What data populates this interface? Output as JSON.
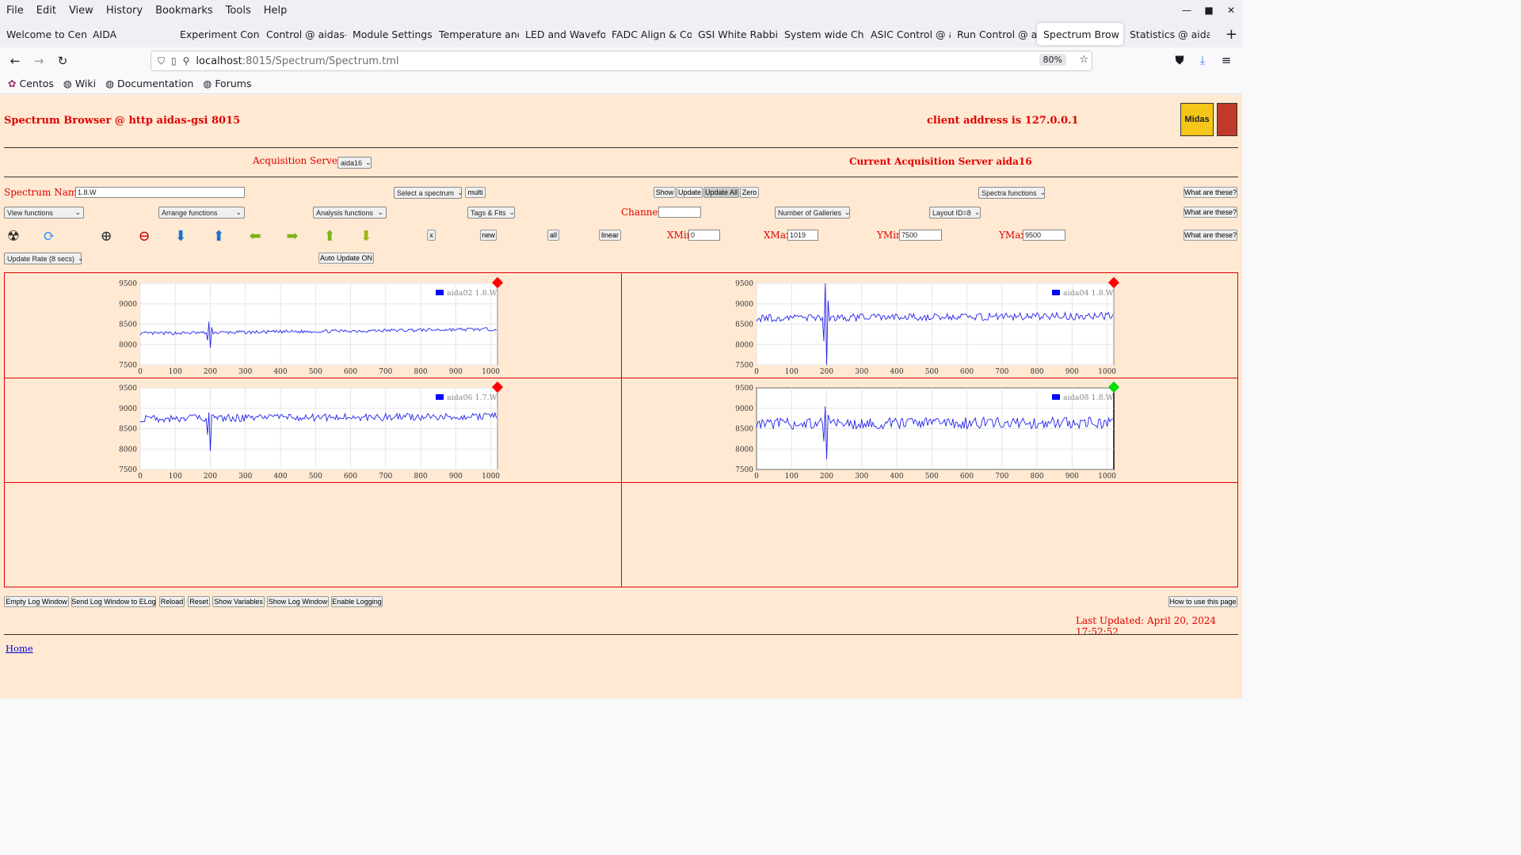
{
  "browser": {
    "menu": [
      "File",
      "Edit",
      "View",
      "History",
      "Bookmarks",
      "Tools",
      "Help"
    ],
    "tabs": [
      {
        "label": "Welcome to Cent",
        "active": false
      },
      {
        "label": "AIDA",
        "active": false
      },
      {
        "label": "Experiment Contr",
        "active": false
      },
      {
        "label": "Control @ aidas-",
        "active": false
      },
      {
        "label": "Module Settings",
        "active": false
      },
      {
        "label": "Temperature and",
        "active": false
      },
      {
        "label": "LED and Wavefor",
        "active": false
      },
      {
        "label": "FADC Align & Co",
        "active": false
      },
      {
        "label": "GSI White Rabbit",
        "active": false
      },
      {
        "label": "System wide Che",
        "active": false
      },
      {
        "label": "ASIC Control @ a",
        "active": false
      },
      {
        "label": "Run Control @ ai",
        "active": false
      },
      {
        "label": "Spectrum Brow",
        "active": true
      },
      {
        "label": "Statistics @ aidas",
        "active": false
      }
    ],
    "url_host": "localhost",
    "url_path": ":8015/Spectrum/Spectrum.tml",
    "zoom": "80%",
    "bookmarks": [
      "Centos",
      "Wiki",
      "Documentation",
      "Forums"
    ]
  },
  "header": {
    "title": "Spectrum Browser @ http aidas-gsi 8015",
    "client": "client address is 127.0.0.1"
  },
  "servers": {
    "label": "Acquisition Servers",
    "selected": "aida16",
    "current": "Current Acquisition Server aida16"
  },
  "controls": {
    "spectrum_name_label": "Spectrum Name:",
    "spectrum_name": "1.8.W",
    "select_spectrum": "Select a spectrum",
    "multi": "multi",
    "show": "Show",
    "update": "Update",
    "update_all": "Update All",
    "zero": "Zero",
    "spectra_functions": "Spectra functions",
    "what": "What are these?",
    "view_functions": "View functions",
    "arrange_functions": "Arrange functions",
    "analysis_functions": "Analysis functions",
    "tags_fits": "Tags & Fits",
    "channel_label": "Channel:",
    "channel": "",
    "galleries": "Number of Galleries",
    "layout": "Layout ID=8",
    "x": "x",
    "new": "new",
    "all": "all",
    "linear": "linear",
    "xmin_label": "XMin",
    "xmin": "0",
    "xmax_label": "XMax",
    "xmax": "1019",
    "ymin_label": "YMin",
    "ymin": "7500",
    "ymax_label": "YMax",
    "ymax": "9500",
    "update_rate": "Update Rate (8 secs)",
    "auto_update": "Auto Update ON"
  },
  "icons": [
    "radiation-icon",
    "refresh-icon",
    "zoom-in-icon",
    "zoom-out-icon",
    "arrow-down-blue-icon",
    "arrow-up-blue-icon",
    "arrow-left-icon",
    "arrow-right-icon",
    "arrow-up-icon",
    "arrow-down-icon"
  ],
  "chart_data": [
    {
      "type": "line",
      "legend": "aida02 1.8.W",
      "status_color": "#ff0000",
      "xlim": [
        0,
        1019
      ],
      "ylim": [
        7500,
        9500
      ],
      "xticks": [
        0,
        100,
        200,
        300,
        400,
        500,
        600,
        700,
        800,
        900,
        1000
      ],
      "yticks": [
        7500,
        8000,
        8500,
        9000,
        9500
      ],
      "baseline": 8300,
      "noise": 40,
      "spike": {
        "x": 200,
        "min": 7920,
        "max": 8560
      },
      "trend": [
        8270,
        8380
      ]
    },
    {
      "type": "line",
      "legend": "aida04 1.8.W",
      "status_color": "#ff0000",
      "xlim": [
        0,
        1019
      ],
      "ylim": [
        7500,
        9500
      ],
      "xticks": [
        0,
        100,
        200,
        300,
        400,
        500,
        600,
        700,
        800,
        900,
        1000
      ],
      "yticks": [
        7500,
        8000,
        8500,
        9000,
        9500
      ],
      "baseline": 8650,
      "noise": 90,
      "spike": {
        "x": 200,
        "min": 7500,
        "max": 9500
      },
      "trend": [
        8650,
        8700
      ]
    },
    {
      "type": "line",
      "legend": "aida06 1.7.W",
      "status_color": "#ff0000",
      "xlim": [
        0,
        1019
      ],
      "ylim": [
        7500,
        9500
      ],
      "xticks": [
        0,
        100,
        200,
        300,
        400,
        500,
        600,
        700,
        800,
        900,
        1000
      ],
      "yticks": [
        7500,
        8000,
        8500,
        9000,
        9500
      ],
      "baseline": 8750,
      "noise": 90,
      "spike": {
        "x": 200,
        "min": 7950,
        "max": 8900
      },
      "trend": [
        8750,
        8800
      ]
    },
    {
      "type": "line",
      "legend": "aida08 1.8.W",
      "status_color": "#00dd00",
      "xlim": [
        0,
        1019
      ],
      "ylim": [
        7500,
        9500
      ],
      "xticks": [
        0,
        100,
        200,
        300,
        400,
        500,
        600,
        700,
        800,
        900,
        1000
      ],
      "yticks": [
        7500,
        8000,
        8500,
        9000,
        9500
      ],
      "baseline": 8620,
      "noise": 140,
      "spike": {
        "x": 200,
        "min": 7750,
        "max": 9050
      },
      "trend": [
        8620,
        8650
      ]
    }
  ],
  "footer": {
    "buttons": [
      "Empty Log Window",
      "Send Log Window to ELog",
      "Reload",
      "Reset",
      "Show Variables",
      "Show Log Window",
      "Enable Logging"
    ],
    "howto": "How to use this page",
    "last_updated": "Last Updated: April 20, 2024 17:52:52",
    "home": "Home"
  }
}
